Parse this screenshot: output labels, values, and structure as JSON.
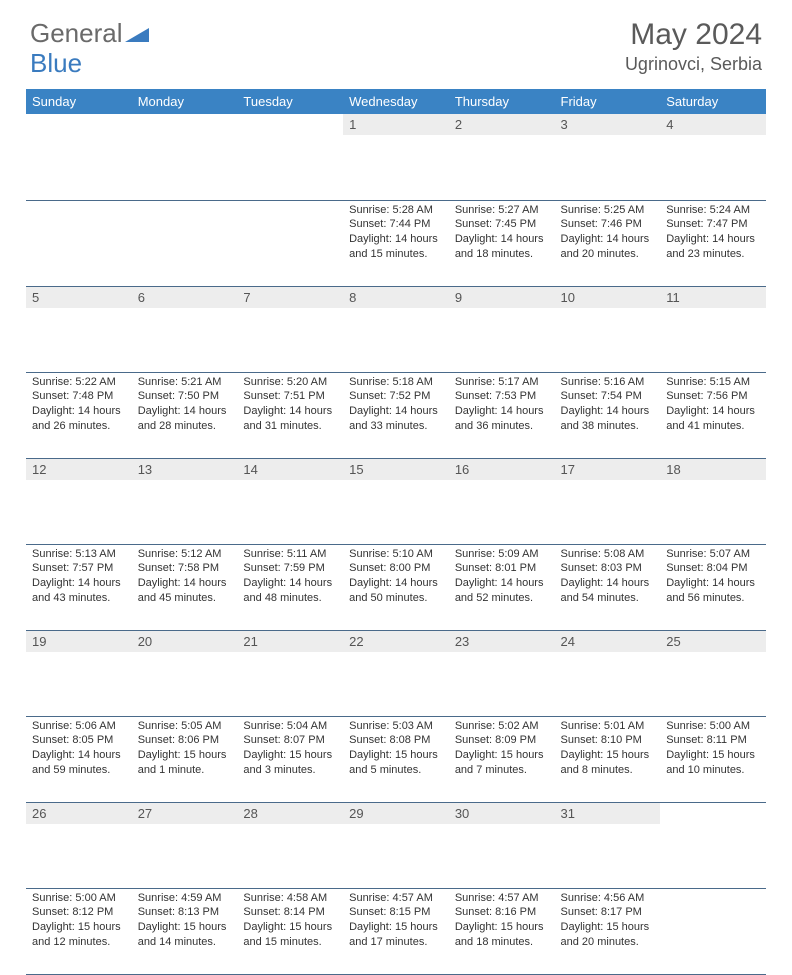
{
  "logo": {
    "part1": "General",
    "part2": "Blue"
  },
  "title": "May 2024",
  "location": "Ugrinovci, Serbia",
  "colors": {
    "header_bg": "#3a83c4",
    "header_text": "#ffffff",
    "daynum_bg": "#ededed",
    "row_border": "#4a6a8a",
    "logo_gray": "#6a6a6a",
    "logo_blue": "#3a7bbf",
    "title_color": "#5a5a5a",
    "body_text": "#333333"
  },
  "weekdays": [
    "Sunday",
    "Monday",
    "Tuesday",
    "Wednesday",
    "Thursday",
    "Friday",
    "Saturday"
  ],
  "weeks": [
    [
      null,
      null,
      null,
      {
        "n": "1",
        "sunrise": "5:28 AM",
        "sunset": "7:44 PM",
        "daylight": "14 hours and 15 minutes."
      },
      {
        "n": "2",
        "sunrise": "5:27 AM",
        "sunset": "7:45 PM",
        "daylight": "14 hours and 18 minutes."
      },
      {
        "n": "3",
        "sunrise": "5:25 AM",
        "sunset": "7:46 PM",
        "daylight": "14 hours and 20 minutes."
      },
      {
        "n": "4",
        "sunrise": "5:24 AM",
        "sunset": "7:47 PM",
        "daylight": "14 hours and 23 minutes."
      }
    ],
    [
      {
        "n": "5",
        "sunrise": "5:22 AM",
        "sunset": "7:48 PM",
        "daylight": "14 hours and 26 minutes."
      },
      {
        "n": "6",
        "sunrise": "5:21 AM",
        "sunset": "7:50 PM",
        "daylight": "14 hours and 28 minutes."
      },
      {
        "n": "7",
        "sunrise": "5:20 AM",
        "sunset": "7:51 PM",
        "daylight": "14 hours and 31 minutes."
      },
      {
        "n": "8",
        "sunrise": "5:18 AM",
        "sunset": "7:52 PM",
        "daylight": "14 hours and 33 minutes."
      },
      {
        "n": "9",
        "sunrise": "5:17 AM",
        "sunset": "7:53 PM",
        "daylight": "14 hours and 36 minutes."
      },
      {
        "n": "10",
        "sunrise": "5:16 AM",
        "sunset": "7:54 PM",
        "daylight": "14 hours and 38 minutes."
      },
      {
        "n": "11",
        "sunrise": "5:15 AM",
        "sunset": "7:56 PM",
        "daylight": "14 hours and 41 minutes."
      }
    ],
    [
      {
        "n": "12",
        "sunrise": "5:13 AM",
        "sunset": "7:57 PM",
        "daylight": "14 hours and 43 minutes."
      },
      {
        "n": "13",
        "sunrise": "5:12 AM",
        "sunset": "7:58 PM",
        "daylight": "14 hours and 45 minutes."
      },
      {
        "n": "14",
        "sunrise": "5:11 AM",
        "sunset": "7:59 PM",
        "daylight": "14 hours and 48 minutes."
      },
      {
        "n": "15",
        "sunrise": "5:10 AM",
        "sunset": "8:00 PM",
        "daylight": "14 hours and 50 minutes."
      },
      {
        "n": "16",
        "sunrise": "5:09 AM",
        "sunset": "8:01 PM",
        "daylight": "14 hours and 52 minutes."
      },
      {
        "n": "17",
        "sunrise": "5:08 AM",
        "sunset": "8:03 PM",
        "daylight": "14 hours and 54 minutes."
      },
      {
        "n": "18",
        "sunrise": "5:07 AM",
        "sunset": "8:04 PM",
        "daylight": "14 hours and 56 minutes."
      }
    ],
    [
      {
        "n": "19",
        "sunrise": "5:06 AM",
        "sunset": "8:05 PM",
        "daylight": "14 hours and 59 minutes."
      },
      {
        "n": "20",
        "sunrise": "5:05 AM",
        "sunset": "8:06 PM",
        "daylight": "15 hours and 1 minute."
      },
      {
        "n": "21",
        "sunrise": "5:04 AM",
        "sunset": "8:07 PM",
        "daylight": "15 hours and 3 minutes."
      },
      {
        "n": "22",
        "sunrise": "5:03 AM",
        "sunset": "8:08 PM",
        "daylight": "15 hours and 5 minutes."
      },
      {
        "n": "23",
        "sunrise": "5:02 AM",
        "sunset": "8:09 PM",
        "daylight": "15 hours and 7 minutes."
      },
      {
        "n": "24",
        "sunrise": "5:01 AM",
        "sunset": "8:10 PM",
        "daylight": "15 hours and 8 minutes."
      },
      {
        "n": "25",
        "sunrise": "5:00 AM",
        "sunset": "8:11 PM",
        "daylight": "15 hours and 10 minutes."
      }
    ],
    [
      {
        "n": "26",
        "sunrise": "5:00 AM",
        "sunset": "8:12 PM",
        "daylight": "15 hours and 12 minutes."
      },
      {
        "n": "27",
        "sunrise": "4:59 AM",
        "sunset": "8:13 PM",
        "daylight": "15 hours and 14 minutes."
      },
      {
        "n": "28",
        "sunrise": "4:58 AM",
        "sunset": "8:14 PM",
        "daylight": "15 hours and 15 minutes."
      },
      {
        "n": "29",
        "sunrise": "4:57 AM",
        "sunset": "8:15 PM",
        "daylight": "15 hours and 17 minutes."
      },
      {
        "n": "30",
        "sunrise": "4:57 AM",
        "sunset": "8:16 PM",
        "daylight": "15 hours and 18 minutes."
      },
      {
        "n": "31",
        "sunrise": "4:56 AM",
        "sunset": "8:17 PM",
        "daylight": "15 hours and 20 minutes."
      },
      null
    ]
  ],
  "labels": {
    "sunrise": "Sunrise: ",
    "sunset": "Sunset: ",
    "daylight": "Daylight: "
  }
}
